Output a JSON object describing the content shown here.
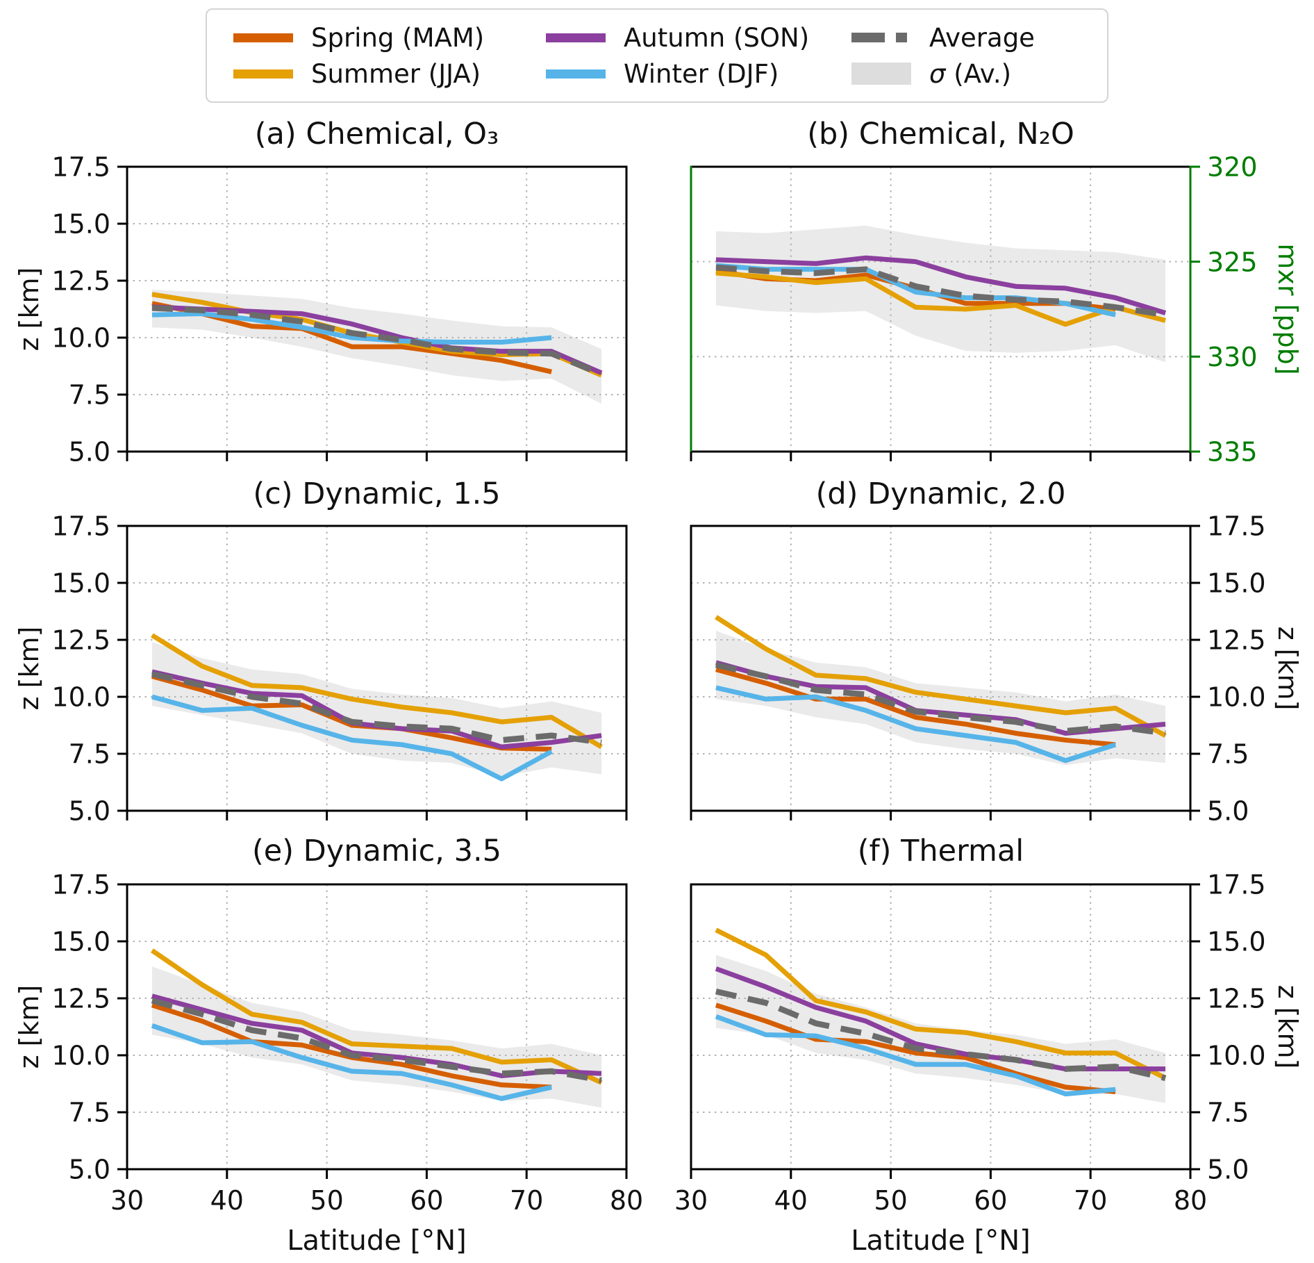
{
  "legend": {
    "items": [
      {
        "id": "spring",
        "label": "Spring (MAM)",
        "color": "#d55e00",
        "swatch": "line"
      },
      {
        "id": "autumn",
        "label": "Autumn (SON)",
        "color": "#8b3f9e",
        "swatch": "line"
      },
      {
        "id": "average",
        "label": "Average",
        "color": "#6b6b6b",
        "swatch": "dash"
      },
      {
        "id": "summer",
        "label": "Summer (JJA)",
        "color": "#e4a005",
        "swatch": "line"
      },
      {
        "id": "winter",
        "label": "Winter (DJF)",
        "color": "#56b4e9",
        "swatch": "line"
      },
      {
        "id": "sigma",
        "symbol": "σ",
        "label": " (Av.)",
        "color": "#dddddd",
        "swatch": "patch"
      }
    ]
  },
  "chart_data": {
    "type": "line",
    "x_label": "Latitude [°N]",
    "x": [
      32.5,
      37.5,
      42.5,
      47.5,
      52.5,
      57.5,
      62.5,
      67.5,
      72.5,
      77.5
    ],
    "xlim": [
      30,
      80
    ],
    "xticks": [
      30,
      40,
      50,
      60,
      70,
      80
    ],
    "xtick_labels": [
      "30",
      "40",
      "50",
      "60",
      "70",
      "80"
    ],
    "grid_x": [
      40,
      50,
      60,
      70
    ],
    "series_colors": {
      "spring": "#d55e00",
      "summer": "#e4a005",
      "autumn": "#8b3f9e",
      "winter": "#56b4e9",
      "average": "#6b6b6b"
    },
    "band_color": "#eaeaea",
    "band_name": "σ (Av.)",
    "legend_position": "top-center",
    "grid": true,
    "panels": [
      {
        "id": "a",
        "title": "(a) Chemical, O₃",
        "ylabel": "z [km]",
        "ylabel_side": "left",
        "ylim": [
          5,
          17.5
        ],
        "invert_y": false,
        "yticks": [
          17.5,
          15.0,
          12.5,
          10.0,
          7.5,
          5.0
        ],
        "ytick_labels": [
          "17.5",
          "15.0",
          "12.5",
          "10.0",
          "7.5",
          "5.0"
        ],
        "grid_y": [
          15,
          12.5,
          10,
          7.5
        ],
        "tick_label_side": "left",
        "axis_color": "#000000",
        "show_x_labels": false,
        "series": {
          "spring": [
            11.5,
            11.05,
            10.5,
            10.4,
            9.6,
            9.6,
            9.3,
            9.0,
            8.5,
            null
          ],
          "summer": [
            11.9,
            11.55,
            11.1,
            10.8,
            10.2,
            9.8,
            9.4,
            9.25,
            9.3,
            8.35
          ],
          "autumn": [
            11.35,
            11.25,
            11.15,
            11.05,
            10.6,
            10.0,
            9.55,
            9.4,
            9.4,
            8.45
          ],
          "winter": [
            11.0,
            11.05,
            10.8,
            10.45,
            10.0,
            9.85,
            9.8,
            9.8,
            10.0,
            null
          ],
          "average": [
            11.3,
            11.2,
            11.0,
            10.7,
            10.2,
            9.9,
            9.5,
            9.35,
            9.3,
            8.4
          ]
        },
        "band": {
          "upper": [
            12.1,
            12.0,
            11.85,
            11.7,
            11.3,
            11.05,
            10.75,
            10.5,
            10.45,
            9.5
          ],
          "lower": [
            10.45,
            10.35,
            10.0,
            9.6,
            9.1,
            8.75,
            8.35,
            8.1,
            8.2,
            7.1
          ]
        }
      },
      {
        "id": "b",
        "title": "(b) Chemical, N₂O",
        "ylabel": "mxr [ppb]",
        "ylabel_side": "right",
        "ylim": [
          320,
          335
        ],
        "invert_y": true,
        "yticks": [
          320,
          325,
          330,
          335
        ],
        "ytick_labels": [
          "320",
          "325",
          "330",
          "335"
        ],
        "grid_y": [
          325,
          330
        ],
        "tick_label_side": "right",
        "axis_color": "#007d00",
        "show_x_labels": false,
        "series": {
          "spring": [
            325.5,
            325.9,
            326.0,
            325.7,
            326.4,
            327.2,
            327.2,
            327.2,
            327.5,
            null
          ],
          "summer": [
            325.6,
            325.8,
            326.1,
            325.9,
            327.4,
            327.5,
            327.3,
            328.3,
            327.4,
            328.1
          ],
          "autumn": [
            324.9,
            325.0,
            325.1,
            324.8,
            325.0,
            325.8,
            326.3,
            326.4,
            326.9,
            327.7
          ],
          "winter": [
            325.2,
            325.4,
            325.4,
            325.4,
            326.6,
            326.9,
            326.9,
            327.2,
            327.8,
            null
          ],
          "average": [
            325.3,
            325.5,
            325.6,
            325.4,
            326.3,
            326.8,
            327.0,
            327.1,
            327.4,
            327.8
          ]
        },
        "band": {
          "upper": [
            323.4,
            323.5,
            323.3,
            323.1,
            323.6,
            324.0,
            324.3,
            324.4,
            324.5,
            324.9
          ],
          "lower": [
            327.3,
            327.6,
            327.7,
            327.6,
            328.9,
            329.7,
            329.8,
            329.7,
            329.4,
            330.3
          ]
        }
      },
      {
        "id": "c",
        "title": "(c) Dynamic, 1.5",
        "ylabel": "z [km]",
        "ylabel_side": "left",
        "ylim": [
          5,
          17.5
        ],
        "invert_y": false,
        "yticks": [
          17.5,
          15.0,
          12.5,
          10.0,
          7.5,
          5.0
        ],
        "ytick_labels": [
          "17.5",
          "15.0",
          "12.5",
          "10.0",
          "7.5",
          "5.0"
        ],
        "grid_y": [
          15,
          12.5,
          10,
          7.5
        ],
        "tick_label_side": "left",
        "axis_color": "#000000",
        "show_x_labels": false,
        "series": {
          "spring": [
            10.9,
            10.3,
            9.6,
            9.65,
            8.75,
            8.6,
            8.2,
            7.75,
            7.7,
            null
          ],
          "summer": [
            12.7,
            11.35,
            10.5,
            10.4,
            9.9,
            9.55,
            9.3,
            8.9,
            9.1,
            7.8
          ],
          "autumn": [
            11.1,
            10.6,
            10.15,
            10.05,
            8.85,
            8.6,
            8.5,
            7.8,
            8.0,
            8.3
          ],
          "winter": [
            10.0,
            9.4,
            9.5,
            8.75,
            8.1,
            7.9,
            7.5,
            6.4,
            7.6,
            null
          ],
          "average": [
            11.0,
            10.5,
            10.0,
            9.7,
            8.9,
            8.7,
            8.6,
            8.1,
            8.3,
            8.0
          ]
        },
        "band": {
          "upper": [
            12.4,
            11.7,
            11.2,
            11.0,
            10.35,
            10.1,
            9.95,
            9.5,
            9.8,
            9.3
          ],
          "lower": [
            9.6,
            9.2,
            8.8,
            8.4,
            7.5,
            7.2,
            7.1,
            6.5,
            6.9,
            6.6
          ]
        }
      },
      {
        "id": "d",
        "title": "(d) Dynamic, 2.0",
        "ylabel": "z [km]",
        "ylabel_side": "right",
        "ylim": [
          5,
          17.5
        ],
        "invert_y": false,
        "yticks": [
          17.5,
          15.0,
          12.5,
          10.0,
          7.5,
          5.0
        ],
        "ytick_labels": [
          "17.5",
          "15.0",
          "12.5",
          "10.0",
          "7.5",
          "5.0"
        ],
        "grid_y": [
          15,
          12.5,
          10,
          7.5
        ],
        "tick_label_side": "right",
        "axis_color": "#000000",
        "show_x_labels": false,
        "series": {
          "spring": [
            11.2,
            10.6,
            9.9,
            9.9,
            9.1,
            8.8,
            8.4,
            8.1,
            7.9,
            null
          ],
          "summer": [
            13.5,
            12.1,
            10.95,
            10.8,
            10.2,
            9.9,
            9.6,
            9.3,
            9.5,
            8.3
          ],
          "autumn": [
            11.5,
            10.9,
            10.45,
            10.4,
            9.4,
            9.2,
            9.0,
            8.4,
            8.6,
            8.8
          ],
          "winter": [
            10.4,
            9.9,
            10.0,
            9.4,
            8.6,
            8.3,
            8.0,
            7.2,
            7.9,
            null
          ],
          "average": [
            11.4,
            10.9,
            10.3,
            10.1,
            9.35,
            9.1,
            8.9,
            8.5,
            8.7,
            8.4
          ]
        },
        "band": {
          "upper": [
            12.9,
            12.1,
            11.5,
            11.3,
            10.6,
            10.4,
            10.2,
            9.8,
            10.1,
            9.6
          ],
          "lower": [
            9.9,
            9.6,
            9.1,
            8.8,
            8.0,
            7.7,
            7.5,
            7.0,
            7.3,
            7.1
          ]
        }
      },
      {
        "id": "e",
        "title": "(e) Dynamic, 3.5",
        "ylabel": "z [km]",
        "ylabel_side": "left",
        "ylim": [
          5,
          17.5
        ],
        "invert_y": false,
        "yticks": [
          17.5,
          15.0,
          12.5,
          10.0,
          7.5,
          5.0
        ],
        "ytick_labels": [
          "17.5",
          "15.0",
          "12.5",
          "10.0",
          "7.5",
          "5.0"
        ],
        "grid_y": [
          15,
          12.5,
          10,
          7.5
        ],
        "tick_label_side": "left",
        "axis_color": "#000000",
        "show_x_labels": true,
        "series": {
          "spring": [
            12.2,
            11.5,
            10.6,
            10.45,
            9.9,
            9.6,
            9.1,
            8.7,
            8.6,
            null
          ],
          "summer": [
            14.6,
            13.1,
            11.8,
            11.45,
            10.5,
            10.4,
            10.3,
            9.7,
            9.8,
            8.8
          ],
          "autumn": [
            12.6,
            12.0,
            11.4,
            11.1,
            10.1,
            9.9,
            9.6,
            9.1,
            9.3,
            9.2
          ],
          "winter": [
            11.3,
            10.55,
            10.6,
            9.9,
            9.3,
            9.2,
            8.7,
            8.1,
            8.6,
            null
          ],
          "average": [
            12.4,
            11.8,
            11.1,
            10.75,
            10.0,
            9.8,
            9.5,
            9.2,
            9.3,
            8.9
          ]
        },
        "band": {
          "upper": [
            13.9,
            13.1,
            12.3,
            11.9,
            11.1,
            10.9,
            10.65,
            10.3,
            10.5,
            10.0
          ],
          "lower": [
            10.9,
            10.5,
            9.9,
            9.6,
            8.9,
            8.7,
            8.4,
            8.0,
            8.1,
            7.7
          ]
        }
      },
      {
        "id": "f",
        "title": "(f) Thermal",
        "ylabel": "z [km]",
        "ylabel_side": "right",
        "ylim": [
          5,
          17.5
        ],
        "invert_y": false,
        "yticks": [
          17.5,
          15.0,
          12.5,
          10.0,
          7.5,
          5.0
        ],
        "ytick_labels": [
          "17.5",
          "15.0",
          "12.5",
          "10.0",
          "7.5",
          "5.0"
        ],
        "grid_y": [
          15,
          12.5,
          10,
          7.5
        ],
        "tick_label_side": "right",
        "axis_color": "#000000",
        "show_x_labels": true,
        "series": {
          "spring": [
            12.2,
            11.5,
            10.7,
            10.6,
            10.1,
            9.9,
            9.2,
            8.6,
            8.4,
            null
          ],
          "summer": [
            15.5,
            14.4,
            12.4,
            11.9,
            11.15,
            11.0,
            10.6,
            10.1,
            10.1,
            9.0
          ],
          "autumn": [
            13.8,
            13.0,
            12.1,
            11.5,
            10.5,
            10.05,
            9.8,
            9.4,
            9.4,
            9.4
          ],
          "winter": [
            11.7,
            10.9,
            10.85,
            10.3,
            9.6,
            9.6,
            9.1,
            8.3,
            8.5,
            null
          ],
          "average": [
            12.8,
            12.3,
            11.4,
            10.95,
            10.3,
            10.05,
            9.8,
            9.4,
            9.5,
            9.0
          ]
        },
        "band": {
          "upper": [
            14.4,
            13.7,
            12.7,
            12.1,
            11.4,
            11.1,
            10.9,
            10.5,
            10.7,
            10.1
          ],
          "lower": [
            11.2,
            10.9,
            10.1,
            9.8,
            9.2,
            9.0,
            8.7,
            8.3,
            8.3,
            7.9
          ]
        }
      }
    ]
  }
}
